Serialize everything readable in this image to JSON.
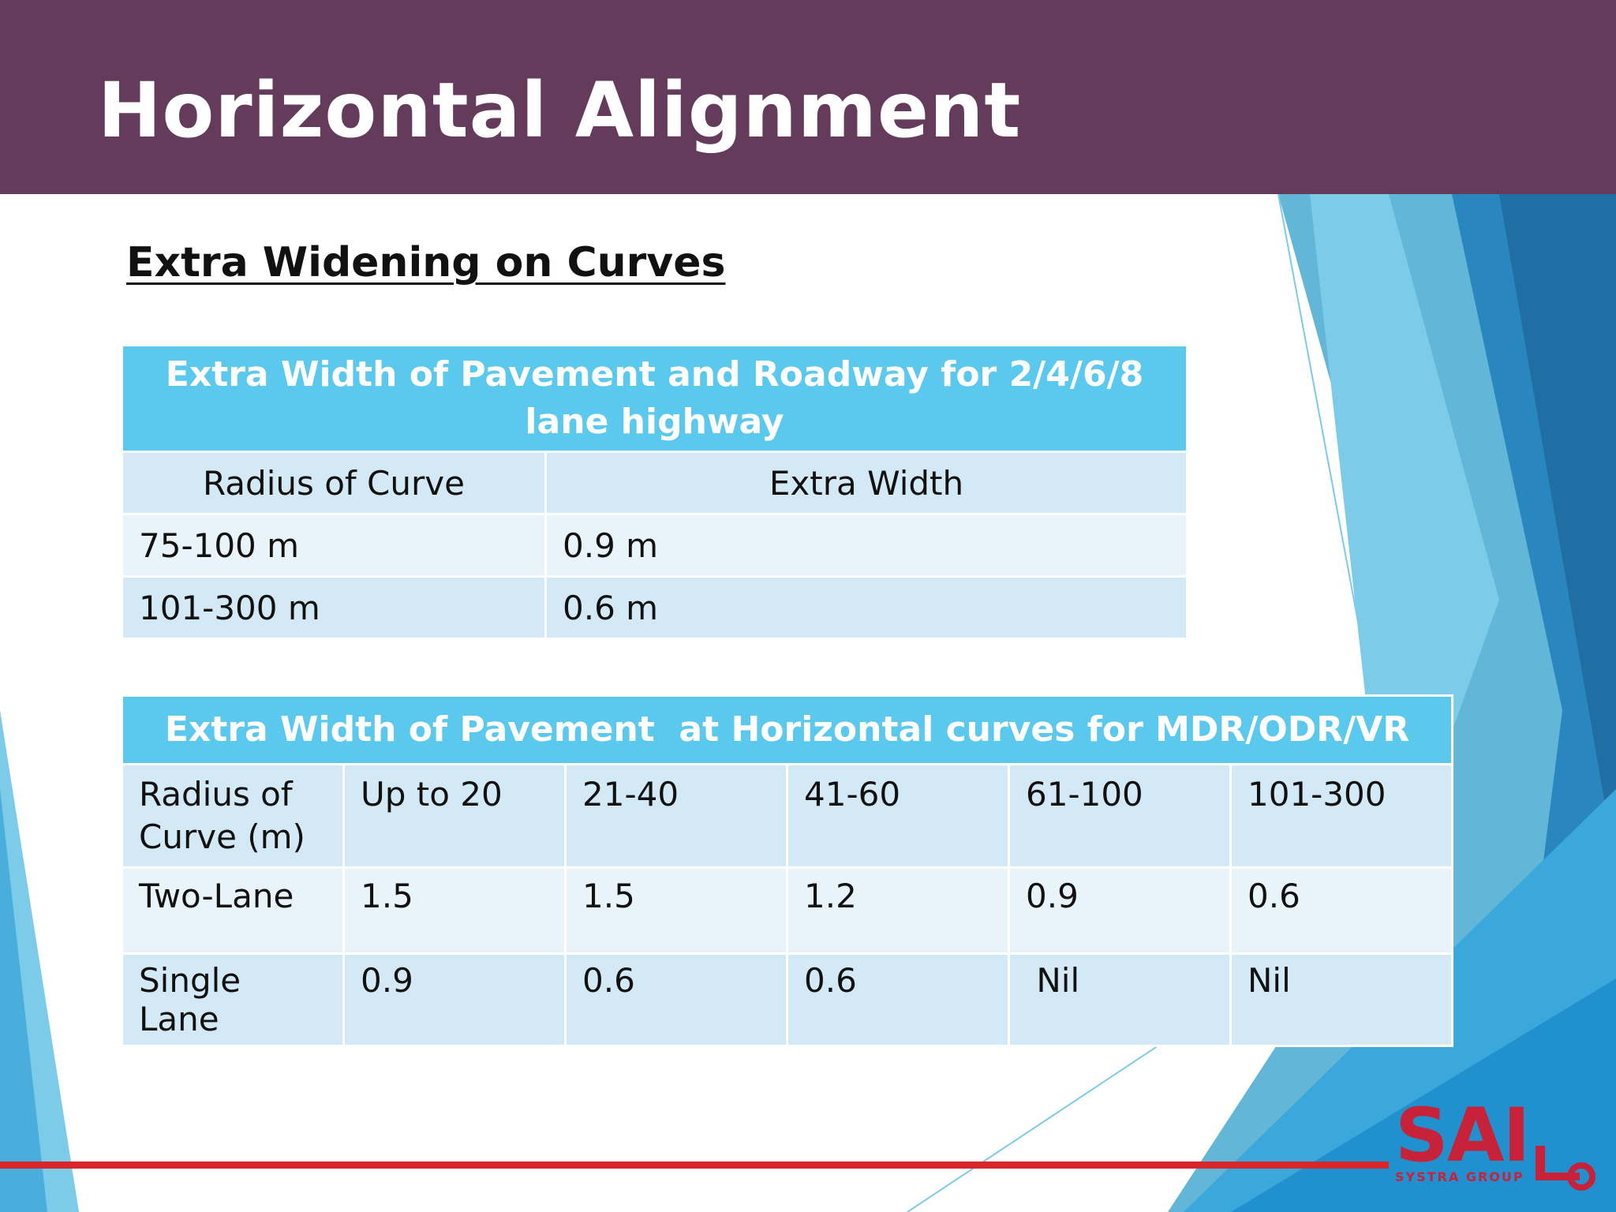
{
  "slide": {
    "title": "Horizontal Alignment",
    "subtitle": "Extra Widening on Curves"
  },
  "table1": {
    "caption": "Extra Width of Pavement and Roadway for 2/4/6/8 lane highway",
    "headers": [
      "Radius of Curve",
      "Extra Width"
    ],
    "rows": [
      [
        "75-100 m",
        "0.9 m"
      ],
      [
        "101-300 m",
        "0.6 m"
      ]
    ]
  },
  "table2": {
    "caption": "Extra Width of Pavement  at Horizontal curves for MDR/ODR/VR",
    "headers": [
      "Radius of Curve (m)",
      "Up to 20",
      "21-40",
      "41-60",
      "61-100",
      "101-300"
    ],
    "rows": [
      [
        "Two-Lane",
        "1.5",
        "1.5",
        "1.2",
        "0.9",
        "0.6"
      ],
      [
        "Single Lane",
        "0.9",
        "0.6",
        "0.6",
        " Nil",
        "Nil"
      ]
    ]
  },
  "logo": {
    "text": "SAI",
    "subtext": "SYSTRA GROUP",
    "color": "#c8213a"
  },
  "colors": {
    "header": "#643b5b",
    "table_caption": "#5bc8ee",
    "row_light": "#e9f4fa",
    "row_dark": "#d3eaf6",
    "accent_line": "#d8262d"
  }
}
